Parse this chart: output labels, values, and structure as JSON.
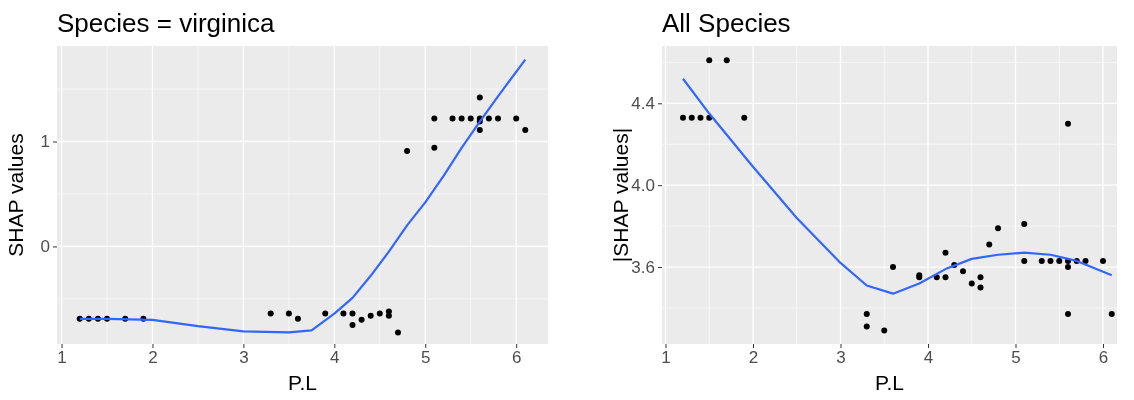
{
  "chart_data": [
    {
      "type": "scatter",
      "title": "Species = virginica",
      "xlabel": "P.L",
      "ylabel": "SHAP values",
      "xlim": [
        0.95,
        6.35
      ],
      "xticks": [
        1,
        2,
        3,
        4,
        5,
        6
      ],
      "ylim": [
        -0.93,
        1.91
      ],
      "yticks": [
        0,
        1
      ],
      "grid": true,
      "series": [
        {
          "type": "scatter",
          "color": "#000000",
          "marker": "circle",
          "x": [
            1.2,
            1.3,
            1.4,
            1.5,
            1.7,
            1.9,
            3.3,
            3.5,
            3.6,
            3.9,
            4.1,
            4.2,
            4.2,
            4.3,
            4.4,
            4.5,
            4.6,
            4.6,
            4.7,
            4.8,
            5.1,
            5.1,
            5.3,
            5.4,
            5.5,
            5.6,
            5.6,
            5.6,
            5.6,
            5.7,
            5.8,
            6.0,
            6.1
          ],
          "values": [
            -0.69,
            -0.69,
            -0.69,
            -0.69,
            -0.69,
            -0.69,
            -0.64,
            -0.64,
            -0.69,
            -0.64,
            -0.64,
            -0.64,
            -0.75,
            -0.7,
            -0.66,
            -0.64,
            -0.62,
            -0.66,
            -0.82,
            0.91,
            1.22,
            0.94,
            1.22,
            1.22,
            1.22,
            1.42,
            1.22,
            1.19,
            1.11,
            1.22,
            1.22,
            1.22,
            1.11
          ]
        },
        {
          "type": "line",
          "color": "#3366ff",
          "x": [
            1.2,
            1.5,
            2.0,
            2.5,
            3.0,
            3.5,
            3.75,
            4.0,
            4.2,
            4.4,
            4.6,
            4.8,
            5.0,
            5.2,
            5.4,
            5.6,
            5.8,
            6.1
          ],
          "values": [
            -0.69,
            -0.69,
            -0.7,
            -0.76,
            -0.81,
            -0.82,
            -0.8,
            -0.64,
            -0.49,
            -0.28,
            -0.05,
            0.2,
            0.42,
            0.67,
            0.94,
            1.19,
            1.43,
            1.78
          ]
        }
      ]
    },
    {
      "type": "scatter",
      "title": "All Species",
      "xlabel": "P.L",
      "ylabel": "|SHAP values|",
      "xlim": [
        0.96,
        6.16
      ],
      "xticks": [
        1,
        2,
        3,
        4,
        5,
        6
      ],
      "ylim": [
        3.224,
        4.68
      ],
      "yticks": [
        3.6,
        {
          "value": 4.0,
          "label": "4.0"
        },
        4.4
      ],
      "grid": true,
      "series": [
        {
          "type": "scatter",
          "color": "#000000",
          "marker": "circle",
          "x": [
            1.2,
            1.3,
            1.4,
            1.5,
            1.9,
            1.5,
            1.7,
            3.3,
            3.3,
            3.5,
            3.6,
            3.9,
            3.9,
            4.1,
            4.2,
            4.2,
            4.3,
            4.4,
            4.5,
            4.6,
            4.6,
            4.7,
            4.8,
            5.1,
            5.1,
            5.3,
            5.4,
            5.5,
            5.6,
            5.6,
            5.6,
            5.6,
            5.7,
            5.8,
            6.0,
            6.1
          ],
          "values": [
            4.33,
            4.33,
            4.33,
            4.33,
            4.33,
            4.61,
            4.61,
            3.37,
            3.31,
            3.29,
            3.6,
            3.56,
            3.55,
            3.55,
            3.67,
            3.55,
            3.61,
            3.58,
            3.52,
            3.55,
            3.5,
            3.71,
            3.79,
            3.81,
            3.63,
            3.63,
            3.63,
            3.63,
            4.3,
            3.63,
            3.6,
            3.37,
            3.63,
            3.63,
            3.63,
            3.37
          ]
        },
        {
          "type": "line",
          "color": "#3366ff",
          "x": [
            1.2,
            1.5,
            2.0,
            2.5,
            3.0,
            3.3,
            3.6,
            3.9,
            4.2,
            4.5,
            4.8,
            5.1,
            5.4,
            5.7,
            6.1
          ],
          "values": [
            4.52,
            4.35,
            4.09,
            3.84,
            3.62,
            3.51,
            3.47,
            3.52,
            3.59,
            3.64,
            3.66,
            3.67,
            3.66,
            3.63,
            3.56
          ]
        }
      ]
    }
  ]
}
